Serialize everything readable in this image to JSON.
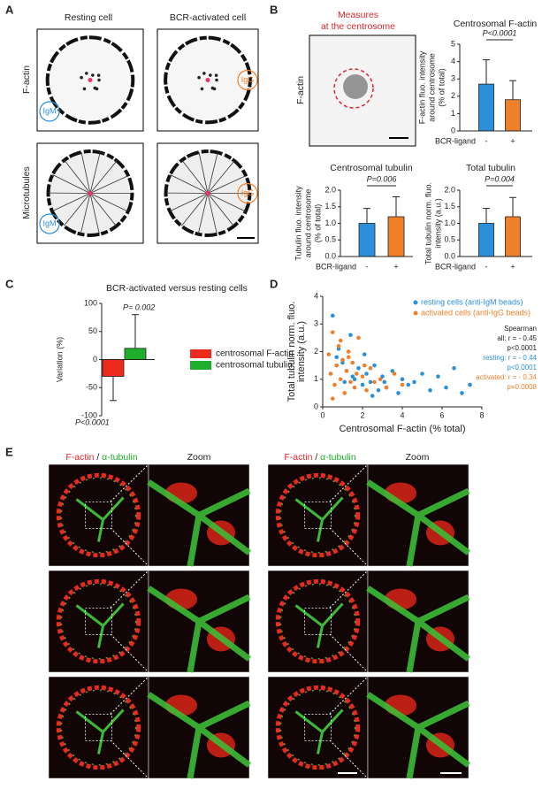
{
  "panel_labels": [
    "A",
    "B",
    "C",
    "D",
    "E"
  ],
  "panel_a": {
    "columns": [
      "Resting cell",
      "BCR-activated cell"
    ],
    "rows": [
      "F-actin",
      "Microtubules"
    ],
    "bead_labels": [
      "IgM",
      "IgG",
      "IgM",
      "IgG"
    ]
  },
  "panel_b": {
    "image_title": [
      "Measures",
      "at the centrosome"
    ],
    "image_label": "F-actin"
  },
  "panel_e": {
    "header": [
      "F-actin",
      "/",
      "α-tubulin"
    ],
    "zoom": "Zoom"
  },
  "chart_data": [
    {
      "type": "bar",
      "title": "Centrosomal F-actin",
      "categories": [
        "-",
        "+"
      ],
      "values": [
        2.7,
        1.8
      ],
      "errors": [
        1.4,
        1.1
      ],
      "colors": [
        "#2b8fd9",
        "#f07f2a"
      ],
      "ylim": [
        0,
        5
      ],
      "yticks": [
        0,
        1,
        2,
        3,
        4,
        5
      ],
      "ylabel": [
        "F-actin fluo. intensity",
        "around centrosome",
        "(% of total)"
      ],
      "xlabel": "BCR-ligand",
      "annotation": "P<0.0001"
    },
    {
      "type": "bar",
      "title": "Centrosomal tubulin",
      "categories": [
        "-",
        "+"
      ],
      "values": [
        1.0,
        1.2
      ],
      "errors": [
        0.45,
        0.6
      ],
      "colors": [
        "#2b8fd9",
        "#f07f2a"
      ],
      "ylim": [
        0,
        2
      ],
      "yticks": [
        {
          "value": 0,
          "label": "0.0"
        },
        0.5,
        {
          "value": 1,
          "label": "1.0"
        },
        1.5,
        {
          "value": 2,
          "label": "2.0"
        }
      ],
      "ylabel": [
        "Tubulin fluo. intensity",
        "around centrosome",
        "(% of total)"
      ],
      "xlabel": "BCR-ligand",
      "annotation": "P=0.006"
    },
    {
      "type": "bar",
      "title": "Total tubulin",
      "categories": [
        "-",
        "+"
      ],
      "values": [
        1.0,
        1.2
      ],
      "errors": [
        0.45,
        0.58
      ],
      "colors": [
        "#2b8fd9",
        "#f07f2a"
      ],
      "ylim": [
        0,
        2
      ],
      "yticks": [
        {
          "value": 0,
          "label": "0.0"
        },
        0.5,
        {
          "value": 1,
          "label": "1.0"
        },
        1.5,
        {
          "value": 2,
          "label": "2.0"
        }
      ],
      "ylabel": [
        "Total tubulin norm. fluo.",
        "intensity (a.u.)"
      ],
      "xlabel": "BCR-ligand",
      "annotation": "P=0.004"
    },
    {
      "type": "bar",
      "title": "BCR-activated versus resting cells",
      "series": [
        {
          "name": "centrosomal F-actin",
          "color": "#ee2a1e",
          "values": [
            -30
          ],
          "errors": [
            43
          ]
        },
        {
          "name": "centrosomal tubulin",
          "color": "#1fae2c",
          "values": [
            20
          ],
          "errors": [
            60
          ]
        }
      ],
      "ylim": [
        -100,
        100
      ],
      "yticks": [
        -100,
        -50,
        0,
        50,
        100
      ],
      "ylabel": [
        "Variation (%)"
      ],
      "annotations": [
        "P<0.0001",
        "P= 0.002"
      ]
    },
    {
      "type": "scatter",
      "series": [
        {
          "name": "resting cells (anti-IgM beads)",
          "color": "#2b8fd9",
          "x": [
            0.5,
            0.8,
            1.0,
            1.2,
            1.4,
            1.6,
            1.8,
            2.0,
            2.2,
            2.4,
            2.6,
            2.8,
            3.0,
            3.2,
            3.5,
            3.8,
            4.0,
            4.3,
            4.6,
            5.0,
            5.4,
            5.8,
            6.2,
            6.6,
            7.0,
            7.4,
            0.7,
            1.1,
            1.5,
            2.1,
            2.5,
            3.1
          ],
          "y": [
            3.3,
            2.1,
            1.6,
            1.3,
            2.6,
            1.0,
            1.4,
            0.8,
            1.2,
            0.9,
            1.5,
            0.6,
            1.1,
            0.7,
            1.3,
            0.5,
            1.0,
            0.8,
            0.9,
            1.2,
            0.6,
            1.1,
            0.7,
            1.4,
            0.5,
            0.8,
            1.8,
            0.9,
            1.1,
            1.9,
            0.4,
            0.9
          ]
        },
        {
          "name": "activated cells (anti-IgG beads)",
          "color": "#f07f2a",
          "x": [
            0.3,
            0.4,
            0.5,
            0.6,
            0.7,
            0.8,
            0.9,
            1.0,
            1.1,
            1.2,
            1.3,
            1.4,
            1.5,
            1.6,
            1.7,
            1.8,
            2.0,
            2.2,
            2.4,
            2.6,
            2.9,
            3.2,
            3.6,
            4.0,
            0.5,
            0.9,
            1.3,
            2.1
          ],
          "y": [
            1.9,
            1.2,
            2.7,
            0.8,
            1.5,
            2.2,
            1.0,
            1.7,
            0.5,
            1.3,
            2.0,
            0.9,
            1.6,
            0.7,
            1.2,
            2.5,
            1.1,
            0.6,
            1.4,
            0.9,
            1.0,
            0.7,
            1.2,
            0.8,
            0.3,
            2.4,
            1.8,
            1.5
          ]
        }
      ],
      "xlim": [
        0,
        8
      ],
      "xticks": [
        0,
        2,
        4,
        6,
        8
      ],
      "ylim": [
        0,
        4
      ],
      "yticks": [
        0,
        1,
        2,
        3,
        4
      ],
      "xlabel": "Centrosomal F-actin (% total)",
      "ylabel": [
        "Total tubulin norm. fluo.",
        "intensity (a.u.)"
      ],
      "annotations": [
        {
          "text": "Spearman",
          "color": "#222222"
        },
        {
          "text": "all: r = - 0.45",
          "color": "#222222"
        },
        {
          "text": "p<0.0001",
          "color": "#222222"
        },
        {
          "text": "resting: r = - 0.44",
          "color": "#2b8fd9"
        },
        {
          "text": "p<0.0001",
          "color": "#2b8fd9"
        },
        {
          "text": "activated: r = - 0.34",
          "color": "#f07f2a"
        },
        {
          "text": "p=0.0008",
          "color": "#f07f2a"
        }
      ]
    }
  ]
}
